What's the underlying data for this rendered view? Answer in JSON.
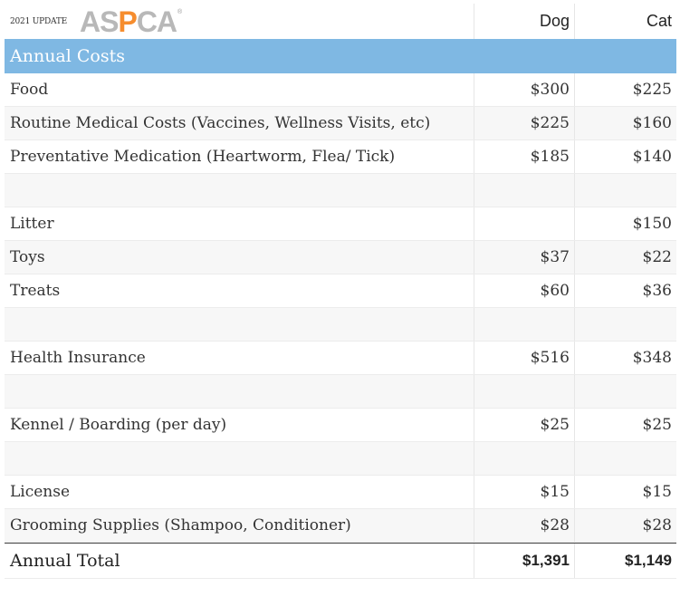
{
  "header": {
    "update_label": "2021 UPDATE",
    "logo": {
      "letters_a": "AS",
      "letter_p": "P",
      "letters_b": "CA",
      "registered": "®",
      "gray": "#b8b8b8",
      "orange": "#f68d2e"
    },
    "col_dog": "Dog",
    "col_cat": "Cat"
  },
  "section": {
    "title": "Annual Costs",
    "bg": "#7fb8e3"
  },
  "rows": [
    {
      "label": "Food",
      "dog": "$300",
      "cat": "$225"
    },
    {
      "label": "Routine Medical Costs (Vaccines, Wellness Visits, etc)",
      "dog": "$225",
      "cat": "$160"
    },
    {
      "label": "Preventative Medication (Heartworm, Flea/ Tick)",
      "dog": "$185",
      "cat": "$140"
    },
    {
      "label": "",
      "dog": "",
      "cat": ""
    },
    {
      "label": "Litter",
      "dog": "",
      "cat": "$150"
    },
    {
      "label": "Toys",
      "dog": "$37",
      "cat": "$22"
    },
    {
      "label": "Treats",
      "dog": "$60",
      "cat": "$36"
    },
    {
      "label": "",
      "dog": "",
      "cat": ""
    },
    {
      "label": "Health Insurance",
      "dog": "$516",
      "cat": "$348"
    },
    {
      "label": "",
      "dog": "",
      "cat": ""
    },
    {
      "label": "Kennel / Boarding (per day)",
      "dog": "$25",
      "cat": "$25"
    },
    {
      "label": "",
      "dog": "",
      "cat": ""
    },
    {
      "label": "License",
      "dog": "$15",
      "cat": "$15"
    },
    {
      "label": "Grooming Supplies (Shampoo, Conditioner)",
      "dog": "$28",
      "cat": "$28"
    }
  ],
  "total": {
    "label": "Annual Total",
    "dog": "$1,391",
    "cat": "$1,149"
  }
}
